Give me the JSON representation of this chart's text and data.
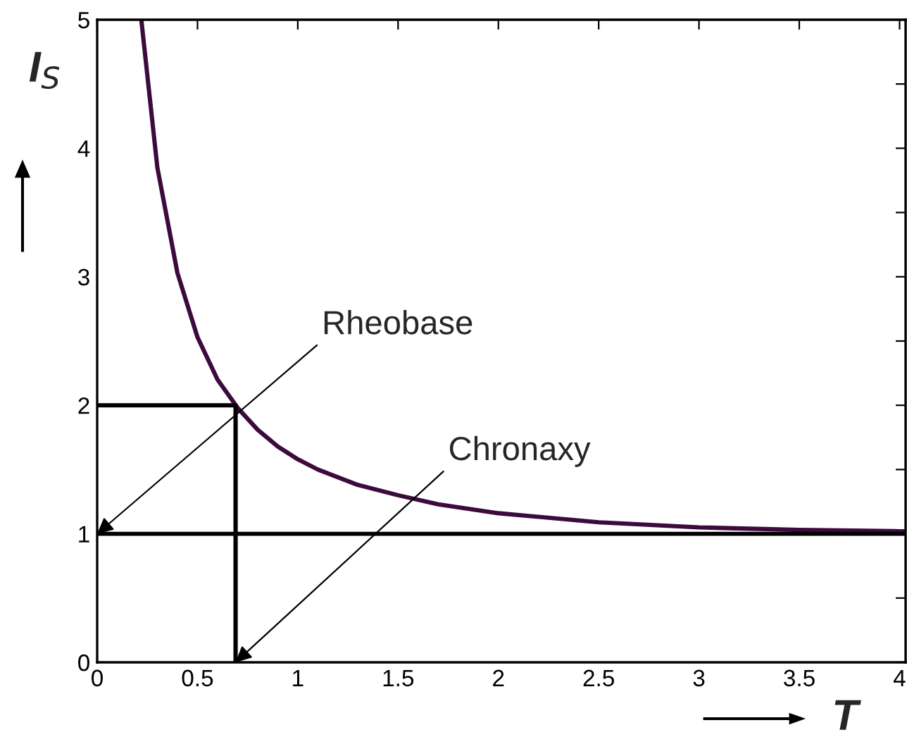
{
  "chart_data": {
    "type": "line",
    "xlabel": "T",
    "ylabel": "I$_{S}$",
    "series": [
      {
        "x": [
          0.22,
          0.3,
          0.4,
          0.5,
          0.6,
          0.7,
          0.8,
          0.9,
          1.0,
          1.1,
          1.3,
          1.5,
          1.7,
          2.0,
          2.5,
          3.0,
          3.5,
          4.0,
          4.03
        ],
        "values": [
          5.0,
          3.85,
          3.03,
          2.53,
          2.2,
          1.98,
          1.81,
          1.68,
          1.58,
          1.5,
          1.38,
          1.3,
          1.23,
          1.16,
          1.09,
          1.05,
          1.03,
          1.02,
          1.02
        ],
        "color": "#3d0a3d"
      },
      {
        "x": [
          0,
          0.69,
          0.69
        ],
        "values": [
          2,
          2,
          0
        ],
        "color": "#000000"
      }
    ],
    "ref_lines": [
      {
        "axis": "y",
        "value": 1,
        "color": "#000000"
      }
    ],
    "annotations": [
      {
        "text": "Rheobase",
        "x": 0,
        "y": 1
      },
      {
        "text": "Chronaxy",
        "x": 0.69,
        "y": 0
      }
    ],
    "xlim": [
      0,
      4.03
    ],
    "ylim": [
      0,
      5
    ],
    "xticks": [
      0,
      0.5,
      1,
      1.5,
      2,
      2.5,
      3,
      3.5,
      4
    ],
    "yticks": [
      0,
      {
        "value": 0.5,
        "label": null
      },
      1,
      {
        "value": 1.5,
        "label": null
      },
      2,
      {
        "value": 2.5,
        "label": null
      },
      3,
      {
        "value": 3.5,
        "label": null
      },
      4,
      {
        "value": 4.5,
        "label": null
      },
      5
    ],
    "grid": false,
    "legend": false,
    "marker": "none",
    "line_style": "solid"
  }
}
